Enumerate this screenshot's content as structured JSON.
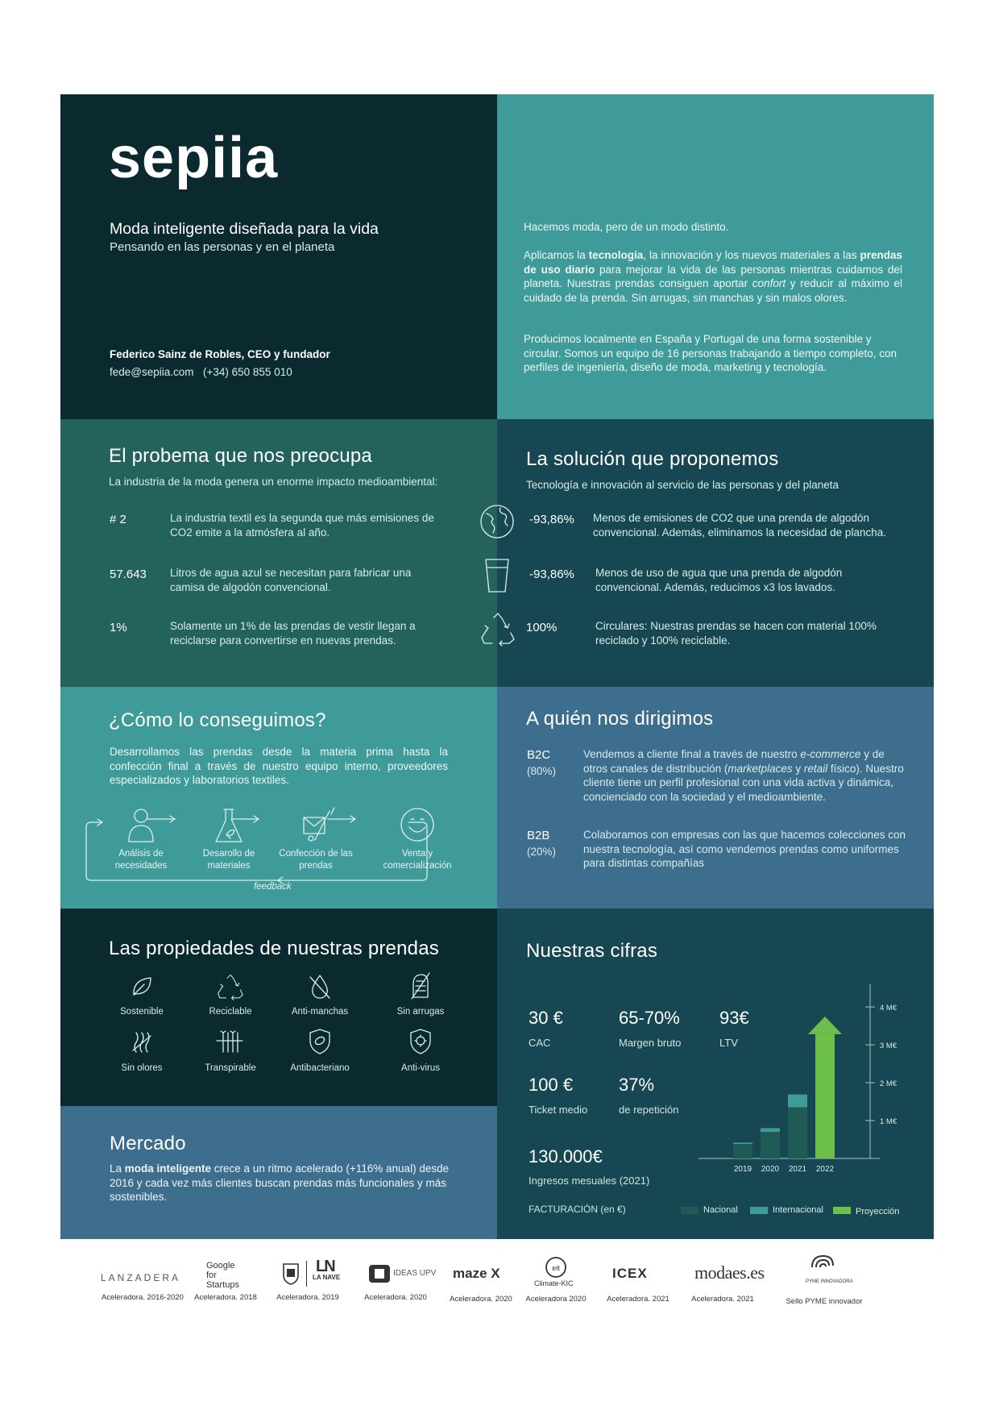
{
  "header": {
    "logo": "sepiia",
    "tagline": "Moda inteligente diseñada para la vida",
    "subtagline": "Pensando en las personas y en el planeta",
    "contact_name": "Federico Sainz de Robles, CEO y fundador",
    "contact_email": "fede@sepiia.com",
    "contact_phone": "(+34) 650 855 010"
  },
  "intro": {
    "p1": "Hacemos moda, pero de un modo distinto.",
    "p2_a": "Aplicamos la ",
    "p2_b": "tecnología",
    "p2_c": ", la innovación y los nuevos materiales a las ",
    "p2_d": "prendas de uso diario",
    "p2_e": " para mejorar la vida de las personas mientras cuidamos del planeta. Nuestras prendas consiguen aportar ",
    "p2_f": "confort",
    "p2_g": " y reducir al máximo el cuidado de la prenda. Sin arrugas, sin manchas y sin malos olores.",
    "p3": "Producimos localmente en España y Portugal de una forma sostenible y circular. Somos un equipo de 16 personas trabajando a tiempo completo, con perfiles de ingeniería, diseño de moda, marketing y tecnología."
  },
  "problem": {
    "title": "El probema que nos preocupa",
    "subtitle": "La industria de la moda genera un enorme impacto medioambiental:",
    "items": [
      {
        "value": "# 2",
        "text": "La industria textil es la segunda que más emisiones de CO2 emite a la atmósfera al año."
      },
      {
        "value": "57.643",
        "text": "Litros de agua azul se necesitan para fabricar una camisa de algodón convencional."
      },
      {
        "value": "1%",
        "text": "Solamente un 1% de las prendas de vestir llegan a reciclarse para convertirse en nuevas prendas."
      }
    ]
  },
  "solution": {
    "title": "La solución que proponemos",
    "subtitle": "Tecnología e innovación al servicio de las personas y del planeta",
    "items": [
      {
        "icon": "globe-icon",
        "value": "-93,86%",
        "text": "Menos de emisiones de CO2 que una prenda de algodón convencional. Además, eliminamos la necesidad de plancha."
      },
      {
        "icon": "water-glass-icon",
        "value": "-93,86%",
        "text": "Menos de uso de agua que una prenda de algodón convencional. Además, reducimos x3 los lavados."
      },
      {
        "icon": "recycle-icon",
        "value": "100%",
        "text": "Circulares: Nuestras prendas se hacen con material 100% reciclado y 100% reciclable."
      }
    ]
  },
  "how": {
    "title": "¿Cómo lo conseguimos?",
    "text": "Desarrollamos las prendas desde la materia prima hasta la confección final a través de nuestro equipo interno, proveedores especializados y laboratorios textiles.",
    "steps": [
      {
        "icon": "person-icon",
        "label": "Análisis de necesidades"
      },
      {
        "icon": "flask-icon",
        "label": "Desarollo de materiales"
      },
      {
        "icon": "sewing-icon",
        "label": "Confección de las prendas"
      },
      {
        "icon": "smiley-icon",
        "label": "Venta y comercialización"
      }
    ],
    "feedback": "feedback"
  },
  "audience": {
    "title": "A quién nos dirigimos",
    "items": [
      {
        "code": "B2C",
        "share": "(80%)",
        "text_a": "Vendemos a cliente final a través de nuestro ",
        "text_b": "e-commerce",
        "text_c": " y de otros canales de distribución (",
        "text_d": "marketplaces",
        "text_e": " y ",
        "text_f": "retail",
        "text_g": " físico). Nuestro cliente tiene un perfil profesional con una vida activa y dinámica, concienciado con la sociedad y el medioambiente."
      },
      {
        "code": "B2B",
        "share": "(20%)",
        "text": "Colaboramos con empresas con las que hacemos colecciones con nuestra tecnología, así como vendemos prendas como uniformes para distintas compañías"
      }
    ]
  },
  "properties": {
    "title": "Las propiedades de nuestras prendas",
    "items": [
      {
        "icon": "leaf-icon",
        "label": "Sostenible"
      },
      {
        "icon": "recycle-icon",
        "label": "Reciclable"
      },
      {
        "icon": "anti-stain-icon",
        "label": "Anti-manchas"
      },
      {
        "icon": "no-wrinkle-icon",
        "label": "Sin arrugas"
      },
      {
        "icon": "no-odor-icon",
        "label": "Sin olores"
      },
      {
        "icon": "breathable-icon",
        "label": "Transpirable"
      },
      {
        "icon": "antibacterial-shield-icon",
        "label": "Antibacteriano"
      },
      {
        "icon": "antivirus-shield-icon",
        "label": "Anti-virus"
      }
    ]
  },
  "market": {
    "title": "Mercado",
    "text_a": "La ",
    "text_b": "moda inteligente",
    "text_c": " crece a un ritmo acelerado (+116% anual) desde 2016 y cada vez más clientes buscan prendas más funcionales y más sostenibles."
  },
  "figures": {
    "title": "Nuestras cifras",
    "metrics": [
      {
        "value": "30 €",
        "label": "CAC"
      },
      {
        "value": "65-70%",
        "label": "Margen bruto"
      },
      {
        "value": "93€",
        "label": "LTV"
      },
      {
        "value": "100 €",
        "label": "Ticket medio"
      },
      {
        "value": "37%",
        "label": "de repetición"
      },
      {
        "value": "130.000€",
        "label": "Ingresos mesuales (2021)"
      }
    ],
    "revenue_label": "FACTURACIÓN (en €)"
  },
  "chart_data": {
    "type": "bar",
    "categories": [
      "2019",
      "2020",
      "2021",
      "2022"
    ],
    "series": [
      {
        "name": "Nacional",
        "values": [
          0.38,
          0.7,
          1.35,
          0
        ]
      },
      {
        "name": "Internacional",
        "values": [
          0.04,
          0.1,
          0.34,
          0
        ]
      },
      {
        "name": "Proyección",
        "values": [
          0,
          0,
          0,
          3.75
        ]
      }
    ],
    "yticks": [
      "1 M€",
      "2 M€",
      "3 M€",
      "4 M€"
    ],
    "ylim": [
      0,
      4.3
    ],
    "legend": "bottom",
    "colors": {
      "Nacional": "#1f5a55",
      "Internacional": "#3f9b9a",
      "Proyección": "#6cc04a"
    }
  },
  "partners": [
    {
      "name": "LANZADERA",
      "caption": "Aceleradora. 2016-2020"
    },
    {
      "name": "Google for Startups",
      "caption": "Aceleradora. 2018"
    },
    {
      "name": "LA NAVE",
      "caption": "Aceleradora. 2019"
    },
    {
      "name": "IDEAS UPV",
      "caption": "Aceleradora. 2020"
    },
    {
      "name": "maze X",
      "caption": "Aceleradora. 2020"
    },
    {
      "name": "Climate-KIC",
      "caption": "Aceleradora 2020"
    },
    {
      "name": "ICEX",
      "caption": "Aceleradora. 2021"
    },
    {
      "name": "modaes.es",
      "caption": "Aceleradora. 2021"
    },
    {
      "name": "PYME INNOVADORA",
      "caption": "Sello PYME innovador"
    }
  ]
}
